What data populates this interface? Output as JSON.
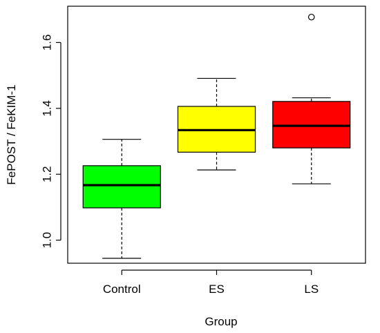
{
  "chart_data": {
    "type": "boxplot",
    "title": "",
    "xlabel": "Group",
    "ylabel": "FePOST / FeKIM-1",
    "ylim": [
      0.93,
      1.71
    ],
    "yticks": [
      1.0,
      1.2,
      1.4,
      1.6
    ],
    "ytick_labels": [
      "1.0",
      "1.2",
      "1.4",
      "1.6"
    ],
    "grid": false,
    "legend": "none",
    "categories": [
      "Control",
      "ES",
      "LS"
    ],
    "boxes": [
      {
        "name": "Control",
        "whisker_low": 0.945,
        "q1": 1.098,
        "median": 1.167,
        "q3": 1.226,
        "whisker_high": 1.306,
        "outliers": [],
        "color": "#00ff00"
      },
      {
        "name": "ES",
        "whisker_low": 1.213,
        "q1": 1.267,
        "median": 1.334,
        "q3": 1.406,
        "whisker_high": 1.491,
        "outliers": [],
        "color": "#ffff00"
      },
      {
        "name": "LS",
        "whisker_low": 1.171,
        "q1": 1.28,
        "median": 1.347,
        "q3": 1.421,
        "whisker_high": 1.432,
        "outliers": [
          1.677
        ],
        "color": "#ff0000"
      }
    ]
  }
}
